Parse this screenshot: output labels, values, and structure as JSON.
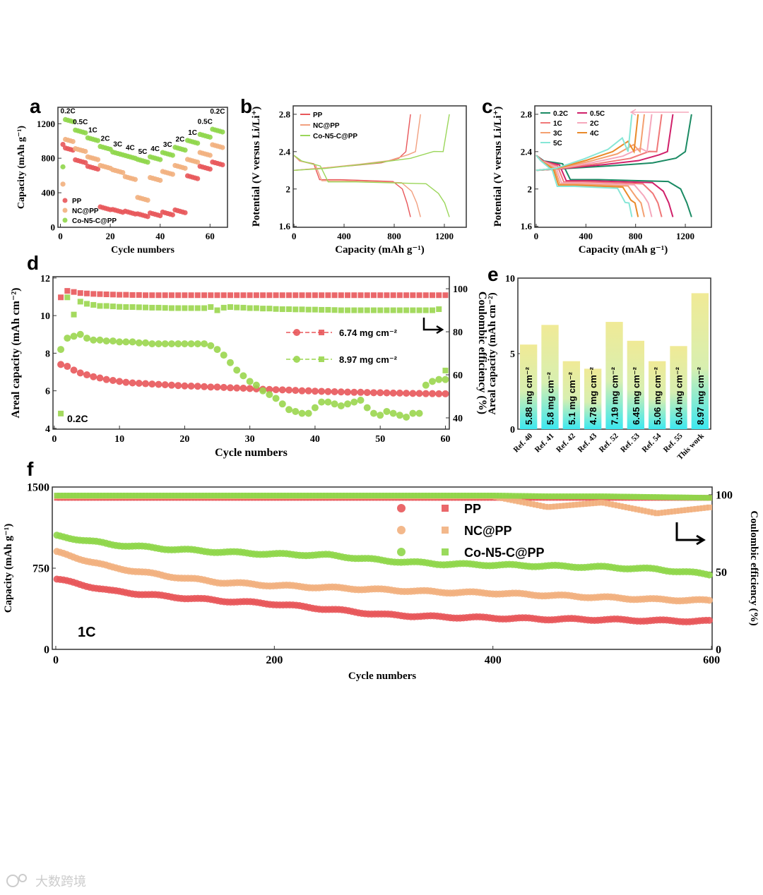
{
  "watermark": "大数跨境",
  "chart_data": [
    {
      "panel": "a",
      "type": "scatter",
      "xlabel": "Cycle numbers",
      "ylabel": "Capacity (mAh g⁻¹)",
      "xlim": [
        -1,
        67
      ],
      "ylim": [
        0,
        1390
      ],
      "xticks": [
        0,
        20,
        40,
        60
      ],
      "yticks": [
        0,
        400,
        800,
        1200
      ],
      "rate_labels": [
        "0.2C",
        "0.5C",
        "1C",
        "2C",
        "3C",
        "4C",
        "5C",
        "4C",
        "3C",
        "2C",
        "1C",
        "0.5C",
        "0.2C"
      ],
      "cycles_per_rate": 5,
      "series": [
        {
          "name": "PP",
          "color": "#e8575a",
          "first_cycle": 960,
          "segment_means": [
            910,
            765,
            690,
            220,
            190,
            170,
            140,
            150,
            160,
            185,
            580,
            690,
            740
          ]
        },
        {
          "name": "NC@PP",
          "color": "#f2b07e",
          "first_cycle": 500,
          "segment_means": [
            1010,
            895,
            800,
            700,
            650,
            570,
            330,
            560,
            630,
            700,
            770,
            850,
            940
          ]
        },
        {
          "name": "Co-N5-C@PP",
          "color": "#8fd64a",
          "first_cycle": 700,
          "segment_means": [
            1240,
            1110,
            1020,
            920,
            855,
            815,
            770,
            800,
            850,
            910,
            990,
            1060,
            1120
          ]
        }
      ],
      "legend": "bottom-left"
    },
    {
      "panel": "b",
      "type": "line",
      "xlabel": "Capacity (mAh g⁻¹)",
      "ylabel": "Potential (V versus Li/Li⁺)",
      "xlim": [
        -6,
        1375
      ],
      "ylim": [
        1.59,
        2.89
      ],
      "xticks": [
        0,
        400,
        800,
        1200
      ],
      "yticks": [
        1.6,
        2.0,
        2.4,
        2.8
      ],
      "series": [
        {
          "name": "PP",
          "color": "#e8575a",
          "capacity": 930
        },
        {
          "name": "NC@PP",
          "color": "#f2a080",
          "capacity": 1010
        },
        {
          "name": "Co-N5-C@PP",
          "color": "#9bd65a",
          "capacity": 1240
        }
      ],
      "legend": "top-left"
    },
    {
      "panel": "c",
      "type": "line",
      "xlabel": "Capacity (mAh g⁻¹)",
      "ylabel": "Potential (V versus Li/Li⁺)",
      "xlim": [
        -11,
        1410
      ],
      "ylim": [
        1.59,
        2.89
      ],
      "xticks": [
        0,
        400,
        800,
        1200
      ],
      "yticks": [
        1.6,
        2.0,
        2.4,
        2.8
      ],
      "series": [
        {
          "name": "0.2C",
          "color": "#1a8a63",
          "capacity": 1250
        },
        {
          "name": "0.5C",
          "color": "#d0206a",
          "capacity": 1100
        },
        {
          "name": "1C",
          "color": "#f07878",
          "capacity": 1010
        },
        {
          "name": "2C",
          "color": "#f5a8bc",
          "capacity": 930
        },
        {
          "name": "3C",
          "color": "#f4a070",
          "capacity": 870
        },
        {
          "name": "4C",
          "color": "#e98a2a",
          "capacity": 820
        },
        {
          "name": "5C",
          "color": "#86e6d6",
          "capacity": 770
        }
      ],
      "legend": "top-left"
    },
    {
      "panel": "d",
      "type": "scatter",
      "xlabel": "Cycle numbers",
      "ylabel": "Areal capacity (mAh cm⁻²)",
      "ylabel_right": "Coulombic efficiency (%)",
      "xlim": [
        -0.2,
        60.6
      ],
      "ylim": [
        3.96,
        12.07
      ],
      "ylim_right": [
        34.75,
        105.6
      ],
      "xticks": [
        0,
        10,
        20,
        30,
        40,
        50,
        60
      ],
      "yticks": [
        4,
        6,
        8,
        10,
        12
      ],
      "yticks_right": [
        40,
        60,
        80,
        100
      ],
      "annotation": "0.2C",
      "series": [
        {
          "name": "6.74 mg cm⁻²",
          "color": "#e8575a",
          "capacity": [
            7.4,
            7.3,
            7.1,
            6.95,
            6.85,
            6.75,
            6.68,
            6.6,
            6.55,
            6.5,
            6.45,
            6.42,
            6.4,
            6.38,
            6.36,
            6.34,
            6.32,
            6.3,
            6.28,
            6.26,
            6.25,
            6.24,
            6.22,
            6.2,
            6.2,
            6.18,
            6.16,
            6.15,
            6.14,
            6.12,
            6.1,
            6.08,
            6.07,
            6.06,
            6.05,
            6.04,
            6.02,
            6.0,
            6.0,
            5.98,
            5.97,
            5.96,
            5.95,
            5.94,
            5.93,
            5.92,
            5.92,
            5.91,
            5.9,
            5.9,
            5.89,
            5.88,
            5.88,
            5.87,
            5.86,
            5.86,
            5.85,
            5.85,
            5.84,
            5.84
          ],
          "ce": [
            96,
            99,
            98.5,
            98,
            97.8,
            97.6,
            97.5,
            97.4,
            97.3,
            97.2,
            97.2,
            97.1,
            97.1,
            97,
            97,
            97,
            97,
            97,
            97,
            97,
            97,
            97,
            97,
            97,
            97,
            97,
            97,
            97,
            97,
            97,
            97,
            97,
            97,
            97,
            97,
            97,
            97,
            97,
            97,
            97,
            97,
            97,
            97,
            97,
            97,
            97,
            97,
            97,
            97,
            97,
            97,
            97,
            97,
            97,
            97,
            97,
            97,
            97,
            97,
            97
          ]
        },
        {
          "name": "8.97 mg cm⁻²",
          "color": "#9ad64e",
          "capacity": [
            8.2,
            8.8,
            8.9,
            9.0,
            8.8,
            8.7,
            8.7,
            8.65,
            8.65,
            8.6,
            8.6,
            8.6,
            8.55,
            8.55,
            8.5,
            8.5,
            8.5,
            8.5,
            8.5,
            8.5,
            8.5,
            8.5,
            8.5,
            8.4,
            8.2,
            7.9,
            7.5,
            7.1,
            6.8,
            6.5,
            6.3,
            6.0,
            5.8,
            5.6,
            5.3,
            5.0,
            4.9,
            4.8,
            4.8,
            5.1,
            5.4,
            5.4,
            5.3,
            5.2,
            5.3,
            5.4,
            5.5,
            5.1,
            4.8,
            4.7,
            4.9,
            4.8,
            4.7,
            4.6,
            4.8,
            4.8,
            6.3,
            6.5,
            6.6,
            6.6
          ],
          "ce": [
            42,
            96,
            88,
            94,
            93,
            92.5,
            92,
            92,
            91.8,
            91.6,
            91.5,
            91.5,
            91.4,
            91.3,
            91.2,
            91.2,
            91.1,
            91,
            91,
            91,
            91,
            91,
            91,
            91.5,
            90,
            91.2,
            91.5,
            91.3,
            91.2,
            91,
            91,
            90.8,
            90.8,
            90.6,
            90.5,
            90.5,
            90.4,
            90.4,
            90.3,
            90.3,
            90.2,
            90.2,
            90.1,
            90,
            90,
            90,
            90,
            90,
            90,
            90,
            90,
            90,
            90,
            90,
            90,
            90,
            90,
            90,
            90.5,
            62
          ]
        }
      ],
      "legend": "right"
    },
    {
      "panel": "e",
      "type": "bar",
      "ylabel": "Areal capacity (mAh cm⁻²)",
      "ylim": [
        0,
        10
      ],
      "yticks": [
        0,
        5,
        10
      ],
      "categories": [
        "Ref. 40",
        "Ref. 41",
        "Ref. 42",
        "Ref. 43",
        "Ref. 52",
        "Ref. 53",
        "Ref. 54",
        "Ref. 55",
        "This work"
      ],
      "values": [
        5.6,
        6.9,
        4.5,
        4.0,
        7.1,
        5.85,
        4.5,
        5.5,
        9.0
      ],
      "bar_labels": [
        "5.88 mg cm⁻²",
        "5.8 mg cm⁻²",
        "5.1 mg cm⁻²",
        "4.78 mg cm⁻²",
        "7.19 mg cm⁻²",
        "6.45 mg cm⁻²",
        "5.06 mg cm⁻²",
        "6.04 mg cm⁻²",
        "8.97 mg cm⁻²"
      ],
      "gradient": [
        "#f0ea96",
        "#3ce8f0"
      ]
    },
    {
      "panel": "f",
      "type": "scatter",
      "xlabel": "Cycle numbers",
      "ylabel": "Capacity (mAh g⁻¹)",
      "ylabel_right": "Coulombic efficiency (%)",
      "xlim": [
        -3.2,
        600.6
      ],
      "ylim": [
        0,
        1500
      ],
      "ylim_right": [
        0,
        105
      ],
      "xticks": [
        0,
        200,
        400,
        600
      ],
      "yticks": [
        0,
        750,
        1500
      ],
      "yticks_right": [
        0,
        50,
        100
      ],
      "annotation": "1C",
      "x": [
        0,
        50,
        100,
        150,
        200,
        250,
        300,
        350,
        400,
        450,
        500,
        550,
        600
      ],
      "series": [
        {
          "name": "PP",
          "color": "#e8575a",
          "capacity": [
            650,
            540,
            490,
            450,
            420,
            370,
            320,
            300,
            290,
            280,
            275,
            265,
            260
          ],
          "ce": [
            98,
            98,
            98,
            98,
            98,
            98,
            98,
            98,
            98,
            98,
            98,
            98,
            98
          ]
        },
        {
          "name": "NC@PP",
          "color": "#f2b07e",
          "capacity": [
            900,
            760,
            680,
            620,
            590,
            570,
            550,
            530,
            520,
            500,
            480,
            460,
            450
          ],
          "ce": [
            99,
            99,
            99,
            99,
            99,
            99,
            99,
            99,
            99,
            92,
            95,
            88,
            92
          ]
        },
        {
          "name": "Co-N5-C@PP",
          "color": "#8fd64a",
          "capacity": [
            1050,
            970,
            930,
            900,
            880,
            870,
            820,
            790,
            780,
            770,
            760,
            740,
            690
          ],
          "ce": [
            99.5,
            99.5,
            99.5,
            99.5,
            99.5,
            99.5,
            99.5,
            99.5,
            99.5,
            99,
            99,
            98.5,
            98
          ]
        }
      ],
      "legend": "top-center"
    }
  ]
}
